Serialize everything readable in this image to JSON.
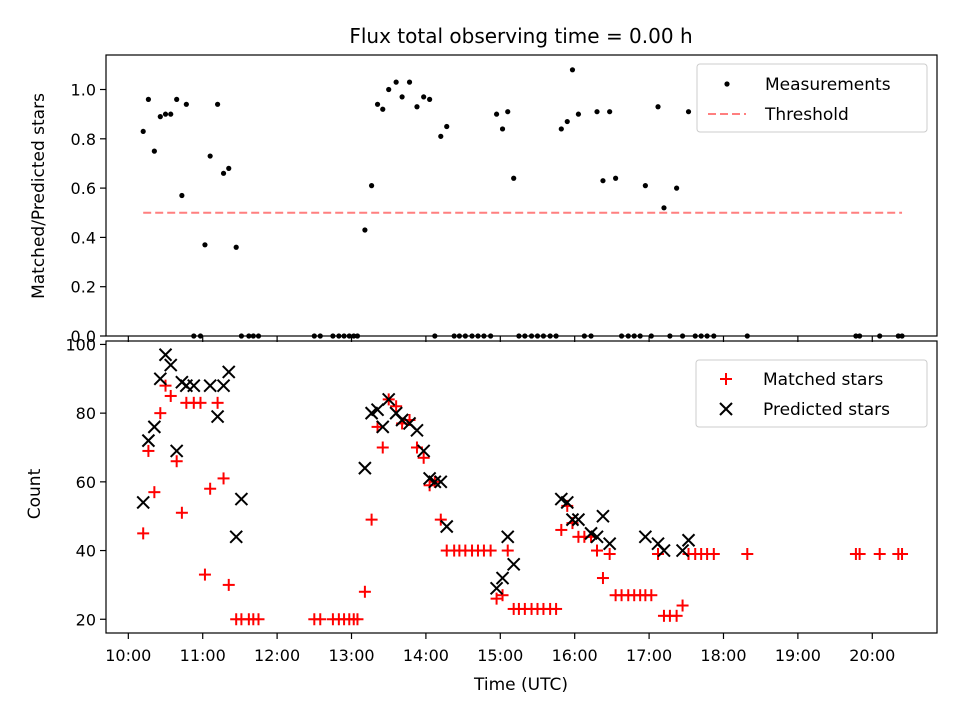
{
  "title": "Flux total observing time = 0.00 h",
  "chart_data": [
    {
      "type": "scatter",
      "xlabel": "",
      "ylabel": "Matched/Predicted stars",
      "xlim": [
        9.7,
        20.87
      ],
      "ylim": [
        0,
        1.14
      ],
      "yticks": [
        "0.0",
        "0.2",
        "0.4",
        "0.6",
        "0.8",
        "1.0"
      ],
      "legend_position": "top-right",
      "legend": [
        "Measurements",
        "Threshold"
      ],
      "threshold": {
        "name": "Threshold",
        "x": [
          10.2,
          20.4
        ],
        "y": 0.5,
        "color": "#ff7f7f",
        "style": "dashed"
      },
      "series": [
        {
          "name": "Measurements",
          "color": "#000000",
          "x": [
            10.2,
            10.27,
            10.35,
            10.43,
            10.5,
            10.57,
            10.65,
            10.72,
            10.78,
            10.88,
            10.97,
            11.03,
            11.1,
            11.2,
            11.28,
            11.35,
            11.45,
            11.52,
            11.62,
            11.68,
            11.75,
            12.5,
            12.58,
            12.75,
            12.83,
            12.9,
            12.97,
            13.03,
            13.08,
            13.18,
            13.27,
            13.35,
            13.42,
            13.5,
            13.6,
            13.68,
            13.78,
            13.88,
            13.97,
            14.05,
            14.12,
            14.2,
            14.28,
            14.38,
            14.45,
            14.53,
            14.62,
            14.7,
            14.78,
            14.87,
            14.95,
            15.03,
            15.1,
            15.18,
            15.25,
            15.33,
            15.42,
            15.5,
            15.58,
            15.67,
            15.75,
            15.82,
            15.9,
            15.97,
            16.05,
            16.13,
            16.22,
            16.3,
            16.38,
            16.47,
            16.55,
            16.63,
            16.72,
            16.8,
            16.88,
            16.95,
            17.03,
            17.12,
            17.2,
            17.28,
            17.37,
            17.45,
            17.53,
            17.62,
            17.7,
            17.78,
            17.87,
            18.32,
            19.78,
            19.83,
            20.1,
            20.35,
            20.4
          ],
          "y": [
            0.83,
            0.96,
            0.75,
            0.89,
            0.9,
            0.9,
            0.96,
            0.57,
            0.94,
            0,
            0,
            0.37,
            0.73,
            0.94,
            0.66,
            0.68,
            0.36,
            0,
            0,
            0,
            0,
            0,
            0,
            0,
            0,
            0,
            0,
            0,
            0,
            0.43,
            0.61,
            0.94,
            0.92,
            1.0,
            1.03,
            0.97,
            1.03,
            0.93,
            0.97,
            0.96,
            0,
            0.81,
            0.85,
            0,
            0,
            0,
            0,
            0,
            0,
            0,
            0.9,
            0.84,
            0.91,
            0.64,
            0,
            0,
            0,
            0,
            0,
            0,
            0,
            0.84,
            0.87,
            1.08,
            0.9,
            0,
            0,
            0.91,
            0.63,
            0.91,
            0.64,
            0,
            0,
            0,
            0,
            0.61,
            0,
            0.93,
            0.52,
            0,
            0.6,
            0,
            0.91,
            0,
            0,
            0,
            0,
            0,
            0,
            0,
            0,
            0,
            0
          ]
        }
      ]
    },
    {
      "type": "scatter",
      "xlabel": "Time (UTC)",
      "ylabel": "Count",
      "xlim": [
        9.7,
        20.87
      ],
      "ylim": [
        16,
        101
      ],
      "yticks": [
        "20",
        "40",
        "60",
        "80",
        "100"
      ],
      "xticks": [
        "10:00",
        "11:00",
        "12:00",
        "13:00",
        "14:00",
        "15:00",
        "16:00",
        "17:00",
        "18:00",
        "19:00",
        "20:00"
      ],
      "legend_position": "top-right",
      "legend": [
        "Matched stars",
        "Predicted stars"
      ],
      "series": [
        {
          "name": "Matched stars",
          "color": "#ff0000",
          "marker": "plus",
          "x": [
            10.2,
            10.27,
            10.35,
            10.43,
            10.5,
            10.57,
            10.65,
            10.72,
            10.78,
            10.88,
            10.97,
            11.03,
            11.1,
            11.2,
            11.28,
            11.35,
            11.45,
            11.52,
            11.62,
            11.68,
            11.75,
            12.5,
            12.58,
            12.75,
            12.83,
            12.9,
            12.97,
            13.03,
            13.08,
            13.18,
            13.27,
            13.35,
            13.42,
            13.5,
            13.6,
            13.68,
            13.78,
            13.88,
            13.97,
            14.05,
            14.12,
            14.2,
            14.28,
            14.38,
            14.45,
            14.53,
            14.62,
            14.7,
            14.78,
            14.87,
            14.95,
            15.03,
            15.1,
            15.18,
            15.25,
            15.33,
            15.42,
            15.5,
            15.58,
            15.67,
            15.75,
            15.82,
            15.9,
            15.97,
            16.05,
            16.13,
            16.22,
            16.3,
            16.38,
            16.47,
            16.55,
            16.63,
            16.72,
            16.8,
            16.88,
            16.95,
            17.03,
            17.12,
            17.2,
            17.28,
            17.37,
            17.45,
            17.53,
            17.62,
            17.7,
            17.78,
            17.87,
            18.32,
            19.78,
            19.83,
            20.1,
            20.35,
            20.4
          ],
          "y": [
            45,
            69,
            57,
            80,
            88,
            85,
            66,
            51,
            83,
            83,
            83,
            33,
            58,
            83,
            61,
            30,
            20,
            20,
            20,
            20,
            20,
            20,
            20,
            20,
            20,
            20,
            20,
            20,
            20,
            28,
            49,
            76,
            70,
            84,
            82,
            77,
            78,
            70,
            67,
            59,
            60,
            49,
            40,
            40,
            40,
            40,
            40,
            40,
            40,
            40,
            26,
            27,
            40,
            23,
            23,
            23,
            23,
            23,
            23,
            23,
            23,
            46,
            53,
            48,
            44,
            44,
            44,
            40,
            32,
            39,
            27,
            27,
            27,
            27,
            27,
            27,
            27,
            39,
            21,
            21,
            21,
            24,
            39,
            39,
            39,
            39,
            39,
            39,
            39,
            39,
            39,
            39,
            39
          ]
        },
        {
          "name": "Predicted stars",
          "color": "#000000",
          "marker": "x",
          "x": [
            10.2,
            10.27,
            10.35,
            10.43,
            10.5,
            10.57,
            10.65,
            10.72,
            10.78,
            10.88,
            11.1,
            11.2,
            11.28,
            11.35,
            11.45,
            11.52,
            13.18,
            13.27,
            13.35,
            13.42,
            13.5,
            13.6,
            13.68,
            13.78,
            13.88,
            13.97,
            14.05,
            14.12,
            14.2,
            14.28,
            14.95,
            15.03,
            15.1,
            15.18,
            15.82,
            15.9,
            15.97,
            16.05,
            16.22,
            16.3,
            16.38,
            16.47,
            16.95,
            17.12,
            17.2,
            17.45,
            17.53
          ],
          "y": [
            54,
            72,
            76,
            90,
            97,
            94,
            69,
            89,
            88,
            88,
            88,
            79,
            88,
            92,
            44,
            55,
            64,
            80,
            81,
            76,
            84,
            80,
            78,
            77,
            75,
            69,
            61,
            60,
            60,
            47,
            29,
            32,
            44,
            36,
            55,
            54,
            49,
            49,
            45,
            44,
            50,
            42,
            44,
            42,
            40,
            40,
            43
          ]
        }
      ]
    }
  ]
}
